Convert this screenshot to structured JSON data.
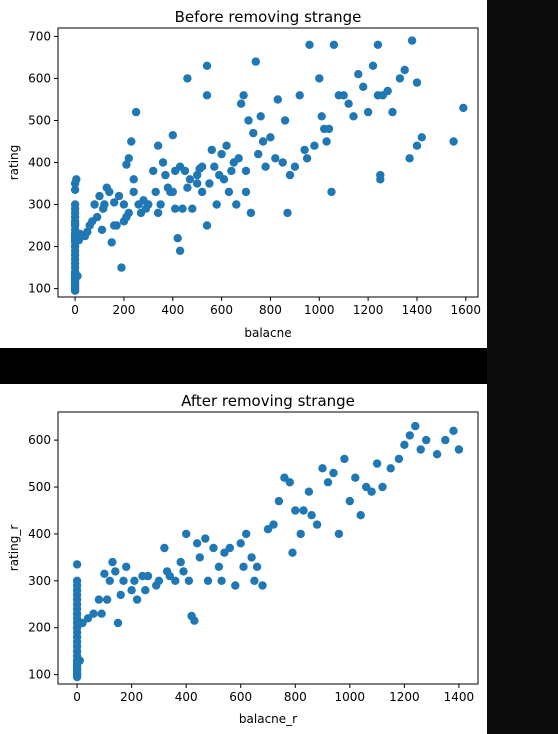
{
  "colors": {
    "marker": "#1f77b4",
    "background": "#000000",
    "panel": "#ffffff"
  },
  "chart_data": [
    {
      "type": "scatter",
      "title": "Before removing strange",
      "xlabel": "balacne",
      "ylabel": "rating",
      "xlim": [
        -70,
        1650
      ],
      "ylim": [
        80,
        720
      ],
      "xticks": [
        0,
        200,
        400,
        600,
        800,
        1000,
        1200,
        1400,
        1600
      ],
      "yticks": [
        100,
        200,
        300,
        400,
        500,
        600,
        700
      ],
      "grid": false,
      "points": [
        [
          0,
          95
        ],
        [
          0,
          100
        ],
        [
          0,
          105
        ],
        [
          0,
          110
        ],
        [
          0,
          115
        ],
        [
          0,
          120
        ],
        [
          0,
          125
        ],
        [
          0,
          130
        ],
        [
          0,
          135
        ],
        [
          0,
          140
        ],
        [
          0,
          150
        ],
        [
          0,
          160
        ],
        [
          0,
          170
        ],
        [
          0,
          180
        ],
        [
          0,
          190
        ],
        [
          0,
          200
        ],
        [
          0,
          210
        ],
        [
          0,
          215
        ],
        [
          0,
          220
        ],
        [
          0,
          225
        ],
        [
          0,
          230
        ],
        [
          0,
          240
        ],
        [
          0,
          250
        ],
        [
          0,
          255
        ],
        [
          0,
          260
        ],
        [
          0,
          270
        ],
        [
          0,
          280
        ],
        [
          0,
          290
        ],
        [
          0,
          300
        ],
        [
          0,
          335
        ],
        [
          0,
          350
        ],
        [
          5,
          360
        ],
        [
          10,
          130
        ],
        [
          15,
          215
        ],
        [
          20,
          230
        ],
        [
          40,
          225
        ],
        [
          50,
          235
        ],
        [
          60,
          250
        ],
        [
          70,
          260
        ],
        [
          80,
          300
        ],
        [
          90,
          270
        ],
        [
          100,
          320
        ],
        [
          110,
          240
        ],
        [
          115,
          290
        ],
        [
          120,
          300
        ],
        [
          130,
          340
        ],
        [
          140,
          330
        ],
        [
          150,
          210
        ],
        [
          160,
          250
        ],
        [
          160,
          305
        ],
        [
          170,
          250
        ],
        [
          180,
          320
        ],
        [
          190,
          150
        ],
        [
          200,
          260
        ],
        [
          200,
          300
        ],
        [
          210,
          270
        ],
        [
          210,
          395
        ],
        [
          220,
          280
        ],
        [
          220,
          410
        ],
        [
          230,
          450
        ],
        [
          240,
          360
        ],
        [
          240,
          330
        ],
        [
          250,
          520
        ],
        [
          260,
          300
        ],
        [
          270,
          280
        ],
        [
          280,
          310
        ],
        [
          290,
          290
        ],
        [
          300,
          300
        ],
        [
          320,
          380
        ],
        [
          330,
          330
        ],
        [
          340,
          440
        ],
        [
          340,
          280
        ],
        [
          350,
          300
        ],
        [
          360,
          400
        ],
        [
          370,
          370
        ],
        [
          380,
          340
        ],
        [
          390,
          330
        ],
        [
          400,
          330
        ],
        [
          400,
          465
        ],
        [
          410,
          380
        ],
        [
          410,
          290
        ],
        [
          420,
          220
        ],
        [
          430,
          190
        ],
        [
          430,
          390
        ],
        [
          440,
          290
        ],
        [
          450,
          380
        ],
        [
          460,
          340
        ],
        [
          460,
          600
        ],
        [
          470,
          360
        ],
        [
          480,
          290
        ],
        [
          500,
          370
        ],
        [
          500,
          350
        ],
        [
          510,
          385
        ],
        [
          520,
          330
        ],
        [
          520,
          390
        ],
        [
          540,
          560
        ],
        [
          540,
          630
        ],
        [
          540,
          250
        ],
        [
          550,
          350
        ],
        [
          560,
          430
        ],
        [
          570,
          390
        ],
        [
          580,
          300
        ],
        [
          590,
          370
        ],
        [
          600,
          420
        ],
        [
          610,
          360
        ],
        [
          620,
          440
        ],
        [
          630,
          330
        ],
        [
          640,
          380
        ],
        [
          650,
          400
        ],
        [
          660,
          300
        ],
        [
          670,
          410
        ],
        [
          680,
          540
        ],
        [
          690,
          560
        ],
        [
          700,
          330
        ],
        [
          700,
          380
        ],
        [
          710,
          500
        ],
        [
          720,
          280
        ],
        [
          730,
          470
        ],
        [
          740,
          640
        ],
        [
          750,
          420
        ],
        [
          760,
          510
        ],
        [
          770,
          450
        ],
        [
          780,
          390
        ],
        [
          800,
          460
        ],
        [
          820,
          410
        ],
        [
          830,
          550
        ],
        [
          850,
          400
        ],
        [
          860,
          500
        ],
        [
          870,
          280
        ],
        [
          880,
          370
        ],
        [
          900,
          390
        ],
        [
          920,
          560
        ],
        [
          940,
          430
        ],
        [
          950,
          410
        ],
        [
          960,
          680
        ],
        [
          980,
          440
        ],
        [
          1000,
          600
        ],
        [
          1010,
          510
        ],
        [
          1020,
          480
        ],
        [
          1030,
          450
        ],
        [
          1040,
          480
        ],
        [
          1050,
          330
        ],
        [
          1060,
          680
        ],
        [
          1080,
          560
        ],
        [
          1100,
          560
        ],
        [
          1120,
          540
        ],
        [
          1140,
          510
        ],
        [
          1160,
          610
        ],
        [
          1180,
          580
        ],
        [
          1200,
          520
        ],
        [
          1220,
          630
        ],
        [
          1240,
          560
        ],
        [
          1240,
          680
        ],
        [
          1250,
          360
        ],
        [
          1250,
          370
        ],
        [
          1260,
          560
        ],
        [
          1280,
          570
        ],
        [
          1300,
          520
        ],
        [
          1330,
          600
        ],
        [
          1350,
          620
        ],
        [
          1370,
          410
        ],
        [
          1380,
          690
        ],
        [
          1400,
          440
        ],
        [
          1400,
          590
        ],
        [
          1420,
          460
        ],
        [
          1550,
          450
        ],
        [
          1590,
          530
        ]
      ]
    },
    {
      "type": "scatter",
      "title": "After removing strange",
      "xlabel": "balacne_r",
      "ylabel": "rating_r",
      "xlim": [
        -70,
        1470
      ],
      "ylim": [
        80,
        660
      ],
      "xticks": [
        0,
        200,
        400,
        600,
        800,
        1000,
        1200,
        1400
      ],
      "yticks": [
        100,
        200,
        300,
        400,
        500,
        600
      ],
      "grid": false,
      "points": [
        [
          0,
          95
        ],
        [
          0,
          100
        ],
        [
          0,
          105
        ],
        [
          0,
          110
        ],
        [
          0,
          115
        ],
        [
          0,
          120
        ],
        [
          0,
          125
        ],
        [
          0,
          130
        ],
        [
          0,
          140
        ],
        [
          0,
          150
        ],
        [
          0,
          160
        ],
        [
          0,
          170
        ],
        [
          0,
          180
        ],
        [
          0,
          190
        ],
        [
          0,
          200
        ],
        [
          0,
          210
        ],
        [
          0,
          220
        ],
        [
          0,
          230
        ],
        [
          0,
          240
        ],
        [
          0,
          250
        ],
        [
          0,
          260
        ],
        [
          0,
          270
        ],
        [
          0,
          280
        ],
        [
          0,
          290
        ],
        [
          0,
          300
        ],
        [
          0,
          335
        ],
        [
          10,
          130
        ],
        [
          20,
          210
        ],
        [
          40,
          220
        ],
        [
          60,
          230
        ],
        [
          80,
          260
        ],
        [
          90,
          230
        ],
        [
          100,
          315
        ],
        [
          110,
          260
        ],
        [
          120,
          300
        ],
        [
          130,
          340
        ],
        [
          140,
          320
        ],
        [
          150,
          210
        ],
        [
          160,
          270
        ],
        [
          170,
          300
        ],
        [
          180,
          330
        ],
        [
          200,
          280
        ],
        [
          210,
          300
        ],
        [
          220,
          260
        ],
        [
          240,
          310
        ],
        [
          250,
          280
        ],
        [
          260,
          310
        ],
        [
          290,
          290
        ],
        [
          300,
          300
        ],
        [
          320,
          370
        ],
        [
          330,
          320
        ],
        [
          340,
          310
        ],
        [
          360,
          300
        ],
        [
          380,
          340
        ],
        [
          390,
          320
        ],
        [
          400,
          400
        ],
        [
          410,
          300
        ],
        [
          420,
          225
        ],
        [
          430,
          215
        ],
        [
          440,
          380
        ],
        [
          450,
          350
        ],
        [
          470,
          390
        ],
        [
          480,
          300
        ],
        [
          500,
          370
        ],
        [
          520,
          330
        ],
        [
          530,
          300
        ],
        [
          540,
          360
        ],
        [
          560,
          370
        ],
        [
          580,
          290
        ],
        [
          600,
          380
        ],
        [
          610,
          330
        ],
        [
          620,
          400
        ],
        [
          640,
          350
        ],
        [
          650,
          300
        ],
        [
          660,
          330
        ],
        [
          680,
          290
        ],
        [
          700,
          410
        ],
        [
          720,
          420
        ],
        [
          740,
          470
        ],
        [
          760,
          520
        ],
        [
          780,
          510
        ],
        [
          790,
          360
        ],
        [
          800,
          450
        ],
        [
          820,
          400
        ],
        [
          830,
          450
        ],
        [
          850,
          490
        ],
        [
          860,
          440
        ],
        [
          880,
          420
        ],
        [
          900,
          540
        ],
        [
          920,
          510
        ],
        [
          940,
          530
        ],
        [
          960,
          400
        ],
        [
          980,
          560
        ],
        [
          1000,
          470
        ],
        [
          1020,
          520
        ],
        [
          1040,
          440
        ],
        [
          1060,
          500
        ],
        [
          1080,
          490
        ],
        [
          1100,
          550
        ],
        [
          1120,
          500
        ],
        [
          1150,
          540
        ],
        [
          1180,
          560
        ],
        [
          1200,
          590
        ],
        [
          1220,
          610
        ],
        [
          1240,
          630
        ],
        [
          1260,
          580
        ],
        [
          1280,
          600
        ],
        [
          1320,
          570
        ],
        [
          1350,
          600
        ],
        [
          1380,
          620
        ],
        [
          1400,
          580
        ]
      ]
    }
  ]
}
